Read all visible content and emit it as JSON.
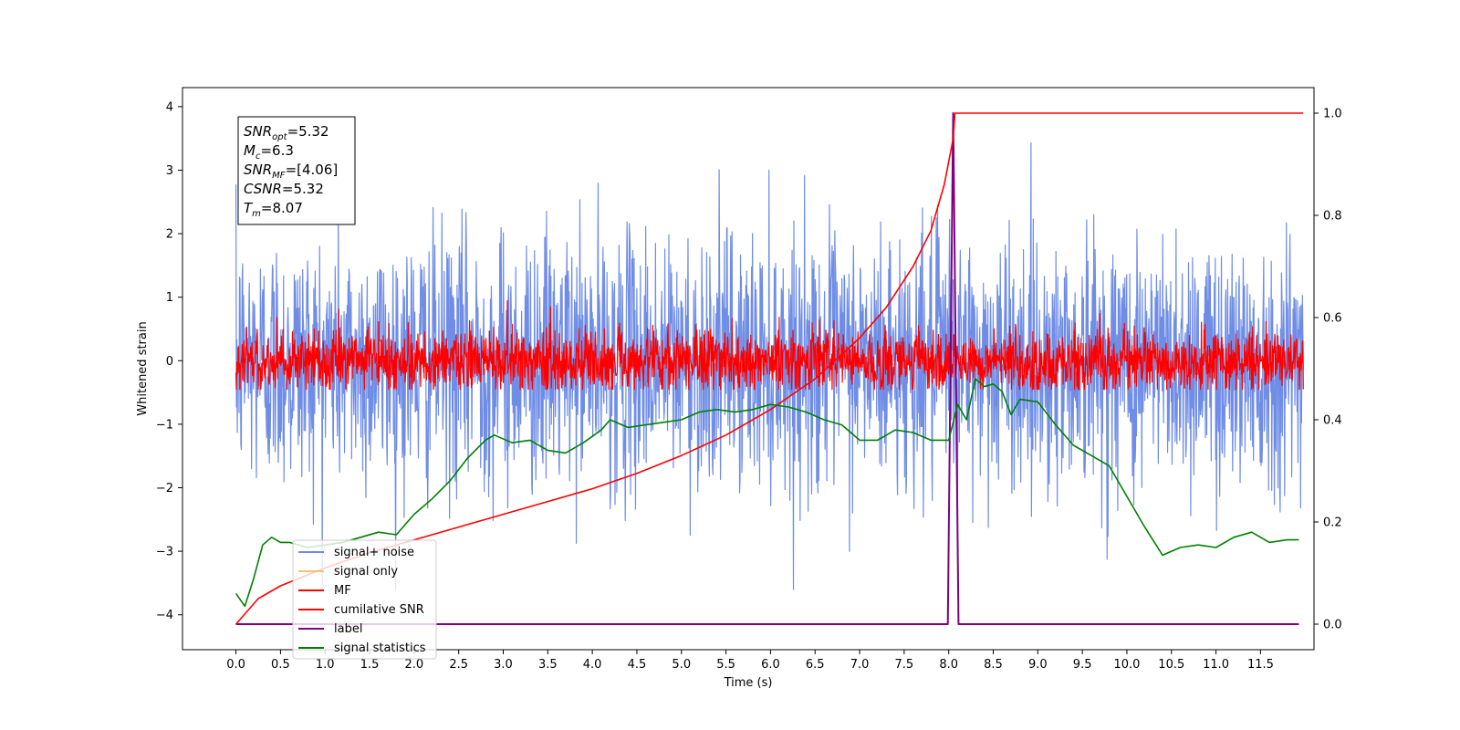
{
  "chart_data": {
    "type": "line",
    "xlabel": "Time (s)",
    "ylabel": "Whitened strain",
    "xlim": [
      -0.6,
      12.1
    ],
    "ylim": [
      -4.55,
      4.3
    ],
    "y2lim": [
      -0.05,
      1.05
    ],
    "xticks": [
      "0.0",
      "0.5",
      "1.0",
      "1.5",
      "2.0",
      "2.5",
      "3.0",
      "3.5",
      "4.0",
      "4.5",
      "5.0",
      "5.5",
      "6.0",
      "6.5",
      "7.0",
      "7.5",
      "8.0",
      "8.5",
      "9.0",
      "9.5",
      "10.0",
      "10.5",
      "11.0",
      "11.5"
    ],
    "yticks": [
      "−4",
      "−3",
      "−2",
      "−1",
      "0",
      "1",
      "2",
      "3",
      "4"
    ],
    "y2ticks": [
      "0.0",
      "0.2",
      "0.4",
      "0.6",
      "0.8",
      "1.0"
    ],
    "legend_position": "lower-left",
    "legend": [
      "signal+ noise",
      "signal only",
      "MF",
      "cumilative SNR",
      "label",
      "signal statistics"
    ],
    "colors": {
      "signal_noise": "#6f8de6",
      "signal_only": "#f5c36b",
      "mf": "#ff0000",
      "cum_snr": "#ff0000",
      "label": "#800080",
      "stats": "#008000"
    },
    "annotation": {
      "snr_opt": "=5.32",
      "mc": "=6.3",
      "snr_mf": "=[4.06]",
      "csnr": "=5.32",
      "tm": "=8.07"
    },
    "series": [
      {
        "name": "signal+ noise",
        "axis": "left",
        "kind": "noise",
        "x_range": [
          0,
          11.98
        ],
        "approx_range": [
          -3.6,
          3.9
        ],
        "std": 1.0
      },
      {
        "name": "MF",
        "axis": "left",
        "kind": "noise",
        "x_range": [
          0,
          11.98
        ],
        "approx_range": [
          -0.45,
          0.95
        ],
        "std": 0.25
      },
      {
        "name": "label",
        "axis": "right",
        "x": [
          0,
          7.99,
          8.05,
          8.11,
          11.93
        ],
        "values": [
          0,
          0,
          1.0,
          0,
          0
        ]
      },
      {
        "name": "cumilative SNR",
        "axis": "right",
        "x": [
          0,
          0.25,
          0.5,
          1.0,
          1.5,
          2.0,
          2.5,
          3.0,
          3.5,
          4.0,
          4.5,
          5.0,
          5.5,
          6.0,
          6.5,
          7.0,
          7.3,
          7.6,
          7.8,
          7.95,
          8.05,
          8.07,
          11.98
        ],
        "values": [
          0.0,
          0.05,
          0.075,
          0.11,
          0.14,
          0.165,
          0.19,
          0.215,
          0.24,
          0.265,
          0.295,
          0.33,
          0.37,
          0.42,
          0.48,
          0.56,
          0.62,
          0.7,
          0.77,
          0.86,
          0.95,
          1.0,
          1.0
        ]
      },
      {
        "name": "signal statistics",
        "axis": "right",
        "x": [
          0,
          0.1,
          0.2,
          0.3,
          0.4,
          0.5,
          0.6,
          0.8,
          1.0,
          1.2,
          1.4,
          1.6,
          1.8,
          2.0,
          2.2,
          2.4,
          2.6,
          2.8,
          2.9,
          3.1,
          3.3,
          3.5,
          3.7,
          3.9,
          4.1,
          4.2,
          4.4,
          4.6,
          4.8,
          5.0,
          5.2,
          5.4,
          5.6,
          5.8,
          6.0,
          6.2,
          6.4,
          6.6,
          6.8,
          7.0,
          7.2,
          7.4,
          7.6,
          7.8,
          8.0,
          8.1,
          8.2,
          8.3,
          8.4,
          8.5,
          8.6,
          8.7,
          8.8,
          9.0,
          9.2,
          9.4,
          9.6,
          9.8,
          10.0,
          10.2,
          10.4,
          10.6,
          10.8,
          11.0,
          11.2,
          11.4,
          11.6,
          11.8,
          11.93
        ],
        "values": [
          0.06,
          0.035,
          0.09,
          0.155,
          0.17,
          0.16,
          0.16,
          0.15,
          0.155,
          0.16,
          0.17,
          0.18,
          0.175,
          0.215,
          0.245,
          0.28,
          0.325,
          0.36,
          0.37,
          0.355,
          0.36,
          0.34,
          0.335,
          0.355,
          0.38,
          0.4,
          0.385,
          0.39,
          0.395,
          0.4,
          0.415,
          0.42,
          0.415,
          0.42,
          0.43,
          0.425,
          0.415,
          0.4,
          0.39,
          0.36,
          0.36,
          0.38,
          0.375,
          0.36,
          0.36,
          0.43,
          0.4,
          0.48,
          0.465,
          0.47,
          0.455,
          0.41,
          0.44,
          0.435,
          0.39,
          0.35,
          0.33,
          0.31,
          0.25,
          0.19,
          0.135,
          0.15,
          0.155,
          0.15,
          0.17,
          0.18,
          0.16,
          0.165,
          0.165
        ]
      }
    ]
  }
}
